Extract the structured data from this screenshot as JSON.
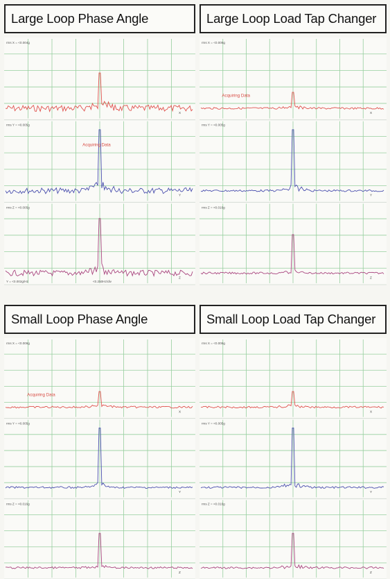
{
  "colors": {
    "x_axis": "#e0524e",
    "y_axis": "#4a4fae",
    "z_axis": "#a9457f",
    "grid": "#96cf9e",
    "status": "#d84a42"
  },
  "chart_data": [
    {
      "title": "Large Loop Phase Angle",
      "type": "line",
      "grid": true,
      "status_text": "Acquiring Data",
      "tracks": [
        {
          "label": "rms X = <0.004g",
          "peak": 0.55,
          "noise": 0.2,
          "hump": 0.12,
          "end_label": "X"
        },
        {
          "label": "rms Y = <0.005g",
          "peak": 0.95,
          "noise": 0.18,
          "hump": 0.2,
          "end_label": "Y"
        },
        {
          "label": "rms Z = <0.005g",
          "peak": 0.85,
          "noise": 0.18,
          "hump": 0.15,
          "end_label": "Z"
        }
      ],
      "footer_left": "Y = <0.002g/Hz",
      "footer_mid": "<0.250Hz/div"
    },
    {
      "title": "Large Loop Load Tap Changer",
      "type": "line",
      "grid": true,
      "status_text": "Acquiring Data",
      "tracks": [
        {
          "label": "rms X = <0.006g",
          "peak": 0.25,
          "noise": 0.06,
          "hump": 0.05,
          "end_label": "X"
        },
        {
          "label": "rms Y = <0.005g",
          "peak": 0.95,
          "noise": 0.06,
          "hump": 0.1,
          "end_label": "Y"
        },
        {
          "label": "rms Z = <0.016g",
          "peak": 0.6,
          "noise": 0.06,
          "hump": 0.05,
          "end_label": "Z"
        }
      ],
      "footer_left": "",
      "footer_mid": ""
    },
    {
      "title": "Small Loop Phase Angle",
      "type": "line",
      "grid": true,
      "status_text": "Acquiring Data",
      "tracks": [
        {
          "label": "rms X = <0.006g",
          "peak": 0.25,
          "noise": 0.06,
          "hump": 0.05,
          "end_label": "X"
        },
        {
          "label": "rms Y = <0.005g",
          "peak": 0.95,
          "noise": 0.06,
          "hump": 0.1,
          "end_label": "Y"
        },
        {
          "label": "rms Z = <0.016g",
          "peak": 0.55,
          "noise": 0.06,
          "hump": 0.05,
          "end_label": "Z"
        }
      ],
      "footer_left": "",
      "footer_mid": ""
    },
    {
      "title": "Small Loop Load Tap Changer",
      "type": "line",
      "grid": true,
      "status_text": "",
      "tracks": [
        {
          "label": "rms X = <0.006g",
          "peak": 0.25,
          "noise": 0.06,
          "hump": 0.05,
          "end_label": "X"
        },
        {
          "label": "rms Y = <0.005g",
          "peak": 0.95,
          "noise": 0.06,
          "hump": 0.1,
          "end_label": "Y"
        },
        {
          "label": "rms Z = <0.016g",
          "peak": 0.55,
          "noise": 0.06,
          "hump": 0.05,
          "end_label": "Z"
        }
      ],
      "footer_left": "",
      "footer_mid": ""
    }
  ]
}
